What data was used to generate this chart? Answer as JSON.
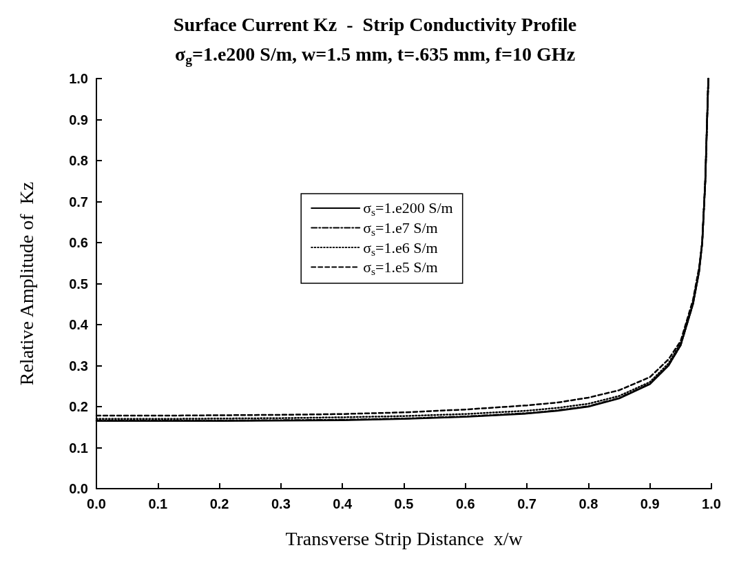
{
  "chart_data": {
    "type": "line",
    "title": "Surface Current Kz  -  Strip Conductivity Profile",
    "subtitle": "σ$_{g}$=1.e200 S/m, w=1.5 mm, t=.635 mm, f=10 GHz",
    "xlabel": "Transverse Strip Distance  x/w",
    "ylabel": "Relative Amplitude of  Kz",
    "x": [
      0,
      0.1,
      0.2,
      0.3,
      0.4,
      0.5,
      0.6,
      0.7,
      0.75,
      0.8,
      0.85,
      0.9,
      0.93,
      0.95,
      0.97,
      0.98,
      0.985,
      0.99,
      0.995
    ],
    "series": [
      {
        "name": "σ$_{s}$=1.e200 S/m",
        "color": "#000000",
        "line_style": "solid",
        "values": [
          0.165,
          0.165,
          0.165,
          0.166,
          0.167,
          0.17,
          0.175,
          0.183,
          0.19,
          0.2,
          0.22,
          0.255,
          0.3,
          0.35,
          0.45,
          0.53,
          0.6,
          0.75,
          1.0
        ]
      },
      {
        "name": "σ$_{s}$=1.e7 S/m",
        "color": "#000000",
        "line_style": "dashdot",
        "values": [
          0.166,
          0.166,
          0.166,
          0.167,
          0.168,
          0.171,
          0.176,
          0.184,
          0.191,
          0.201,
          0.221,
          0.256,
          0.3,
          0.35,
          0.45,
          0.53,
          0.6,
          0.75,
          1.0
        ]
      },
      {
        "name": "σ$_{s}$=1.e6 S/m",
        "color": "#000000",
        "line_style": "dotted",
        "values": [
          0.17,
          0.17,
          0.171,
          0.172,
          0.174,
          0.177,
          0.182,
          0.19,
          0.197,
          0.207,
          0.226,
          0.26,
          0.305,
          0.355,
          0.455,
          0.535,
          0.6,
          0.75,
          1.0
        ]
      },
      {
        "name": "σ$_{s}$=1.e5 S/m",
        "color": "#000000",
        "line_style": "dashed",
        "values": [
          0.178,
          0.178,
          0.179,
          0.18,
          0.182,
          0.186,
          0.193,
          0.203,
          0.21,
          0.222,
          0.24,
          0.272,
          0.315,
          0.36,
          0.46,
          0.54,
          0.6,
          0.75,
          1.0
        ]
      }
    ],
    "xlim": [
      0,
      1
    ],
    "xticks": [
      {
        "value": 0,
        "label": "0.0"
      },
      0.1,
      0.2,
      0.3,
      0.4,
      0.5,
      0.6,
      0.7,
      0.8,
      0.9,
      {
        "value": 1,
        "label": "1.0"
      }
    ],
    "ylim": [
      0,
      1
    ],
    "yticks": [
      {
        "value": 0,
        "label": "0.0"
      },
      0.1,
      0.2,
      0.3,
      0.4,
      0.5,
      0.6,
      0.7,
      0.8,
      0.9,
      {
        "value": 1,
        "label": "1.0"
      }
    ],
    "grid": false,
    "legend": "center",
    "marker": "none"
  }
}
